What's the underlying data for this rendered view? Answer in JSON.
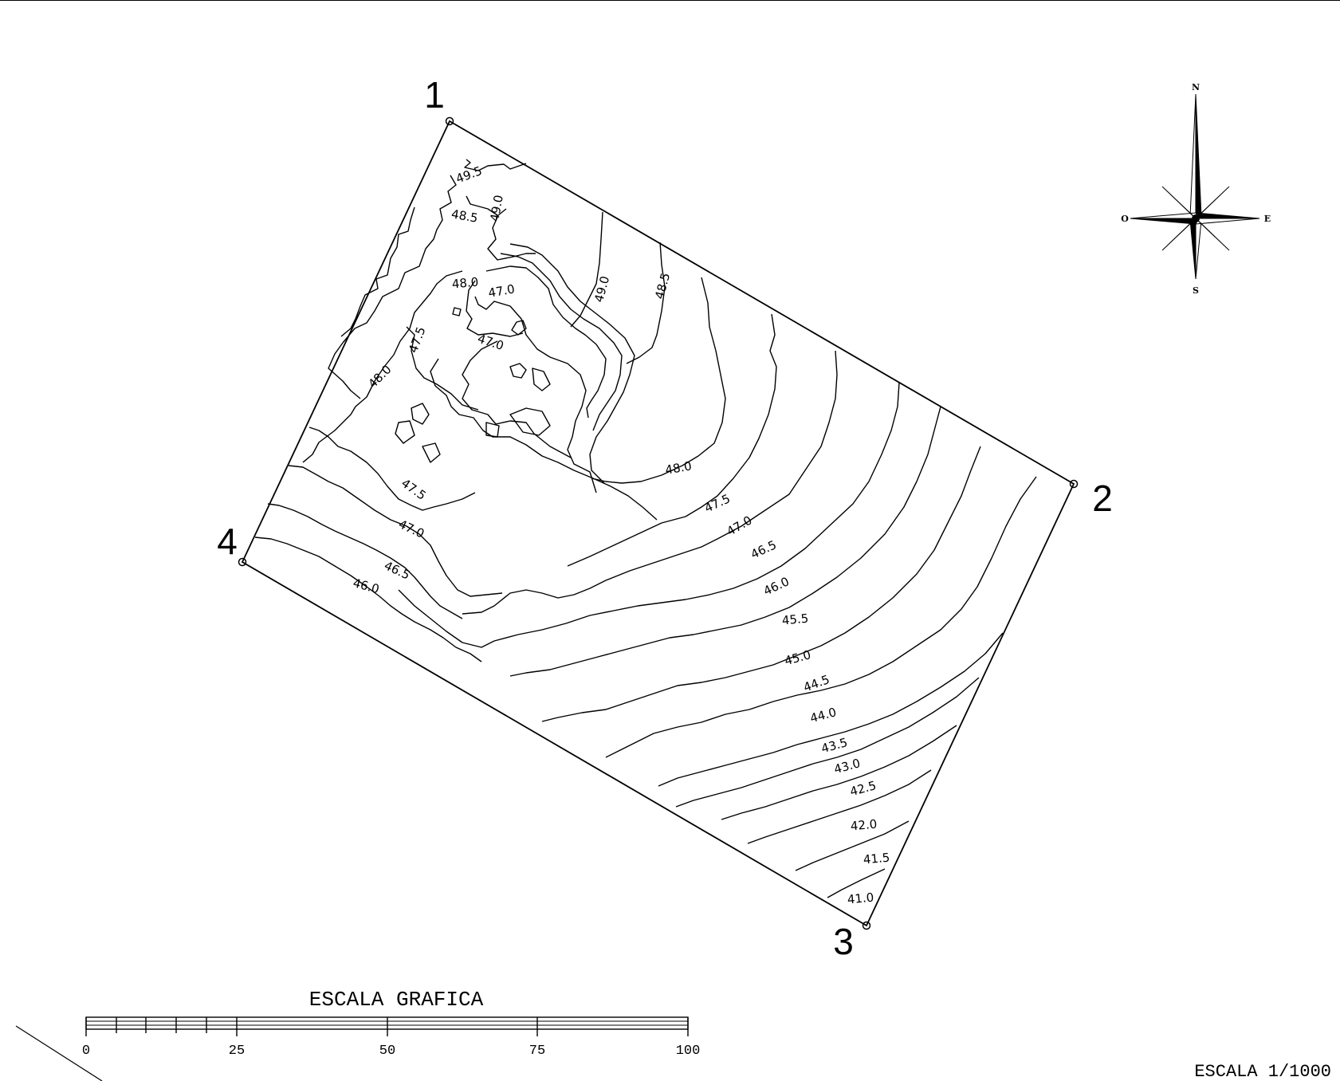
{
  "map": {
    "vertices": [
      {
        "id": "1",
        "label": "1"
      },
      {
        "id": "2",
        "label": "2"
      },
      {
        "id": "3",
        "label": "3"
      },
      {
        "id": "4",
        "label": "4"
      }
    ],
    "contour_labels": [
      "49.5",
      "49.0",
      "48.5",
      "48.5",
      "49.0",
      "48.0",
      "47.0",
      "47.5",
      "47.0",
      "48.0",
      "48.0",
      "47.5",
      "47.5",
      "47.0",
      "47.0",
      "46.5",
      "46.5",
      "46.0",
      "46.0",
      "45.5",
      "45.0",
      "44.5",
      "44.0",
      "43.5",
      "43.0",
      "42.5",
      "42.0",
      "41.5",
      "41.0"
    ],
    "line_color": "#000000",
    "background": "#ffffff"
  },
  "compass": {
    "north": "N",
    "south": "S",
    "east": "E",
    "west": "O",
    "icon": "compass-rose-icon"
  },
  "scale_bar": {
    "title": "ESCALA GRAFICA",
    "ticks": [
      "0",
      "25",
      "50",
      "75",
      "100"
    ]
  },
  "scale_text": "ESCALA 1/1000"
}
